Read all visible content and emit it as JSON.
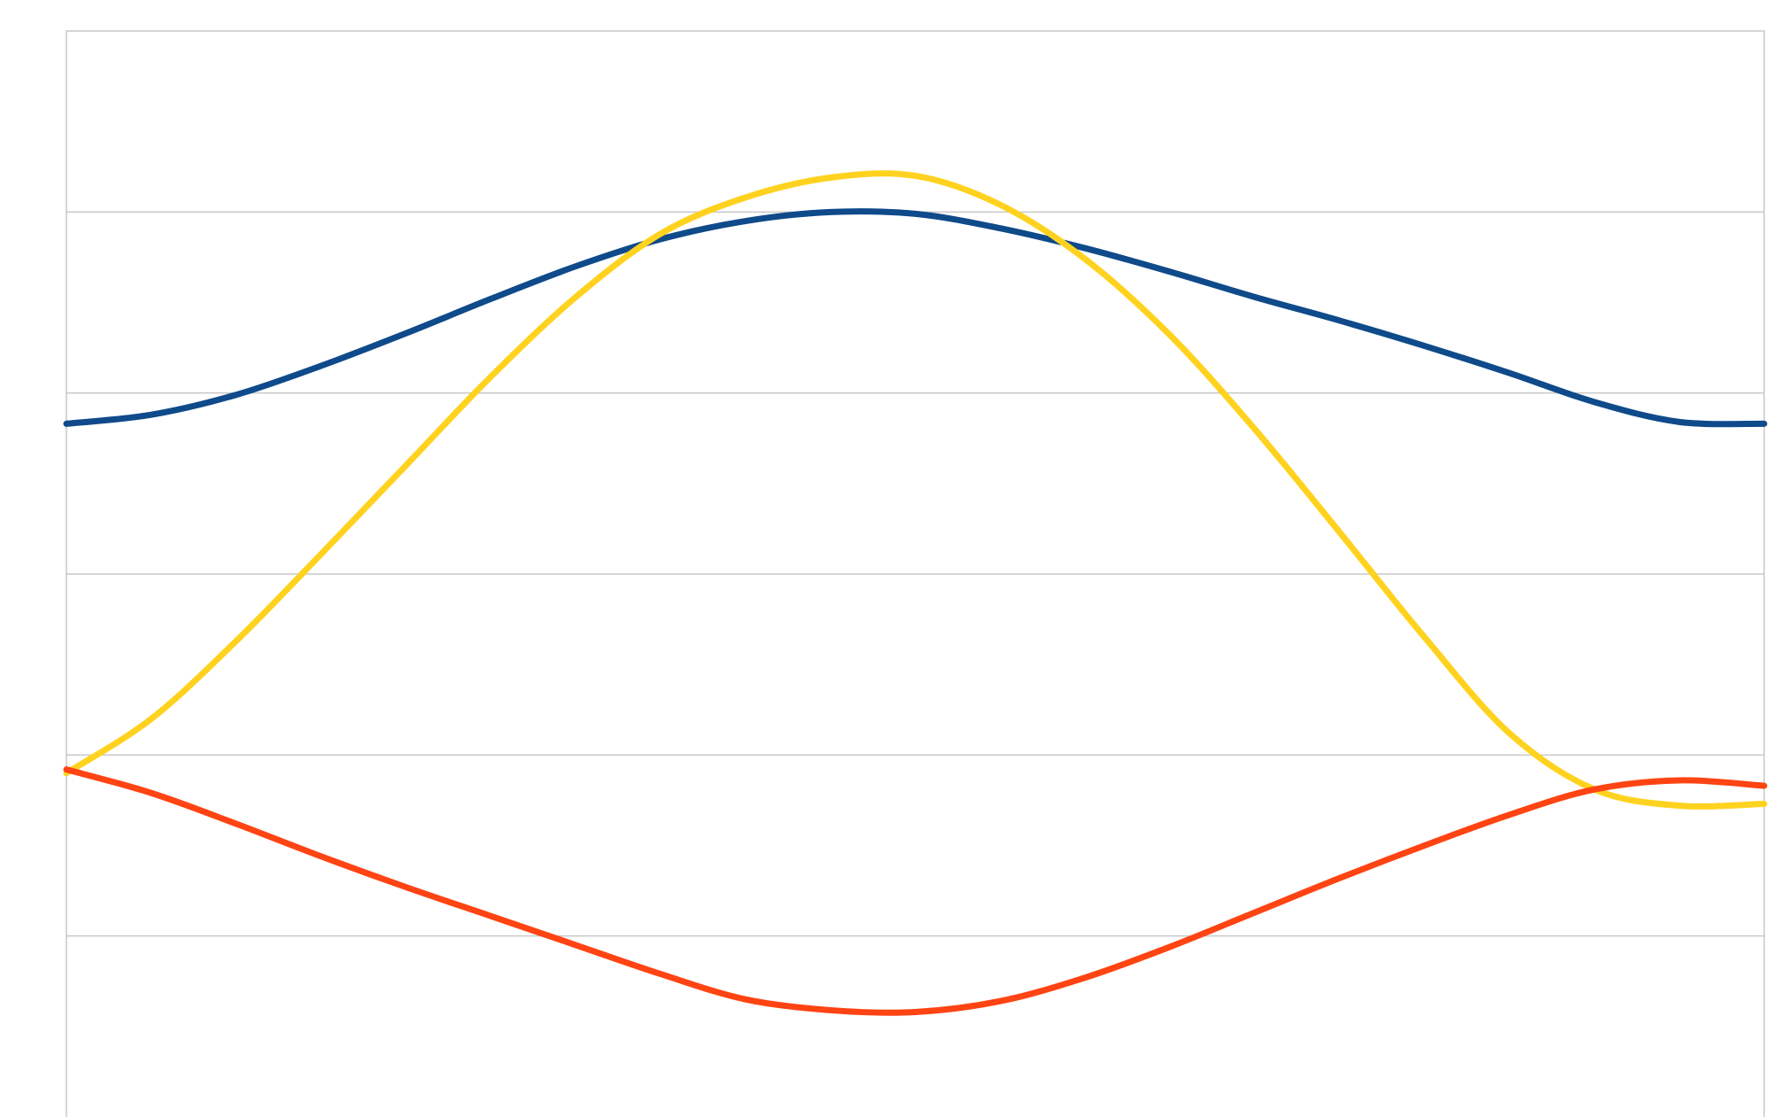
{
  "chart_data": {
    "type": "line",
    "title": "",
    "xlabel": "",
    "ylabel": "",
    "xlim": [
      0,
      1
    ],
    "ylim": [
      0,
      6
    ],
    "y_gridlines": [
      1,
      2,
      3,
      4,
      5
    ],
    "grid": true,
    "legend": "none",
    "x": [
      0,
      0.05,
      0.1,
      0.15,
      0.2,
      0.25,
      0.3,
      0.35,
      0.4,
      0.45,
      0.5,
      0.55,
      0.6,
      0.65,
      0.7,
      0.75,
      0.8,
      0.85,
      0.9,
      0.95,
      1
    ],
    "series": [
      {
        "color": "#0f4a8a",
        "values": [
          3.83,
          3.88,
          3.99,
          4.15,
          4.33,
          4.52,
          4.7,
          4.85,
          4.95,
          5.0,
          4.99,
          4.91,
          4.8,
          4.67,
          4.53,
          4.4,
          4.26,
          4.11,
          3.95,
          3.84,
          3.83
        ]
      },
      {
        "color": "#ffd21f",
        "values": [
          1.9,
          2.2,
          2.63,
          3.11,
          3.6,
          4.09,
          4.53,
          4.88,
          5.08,
          5.19,
          5.2,
          5.04,
          4.74,
          4.32,
          3.8,
          3.23,
          2.65,
          2.12,
          1.81,
          1.72,
          1.73
        ]
      },
      {
        "color": "#ff4413",
        "values": [
          1.92,
          1.79,
          1.62,
          1.44,
          1.27,
          1.11,
          0.95,
          0.79,
          0.65,
          0.59,
          0.58,
          0.64,
          0.77,
          0.94,
          1.13,
          1.32,
          1.5,
          1.67,
          1.81,
          1.86,
          1.83
        ]
      }
    ]
  }
}
